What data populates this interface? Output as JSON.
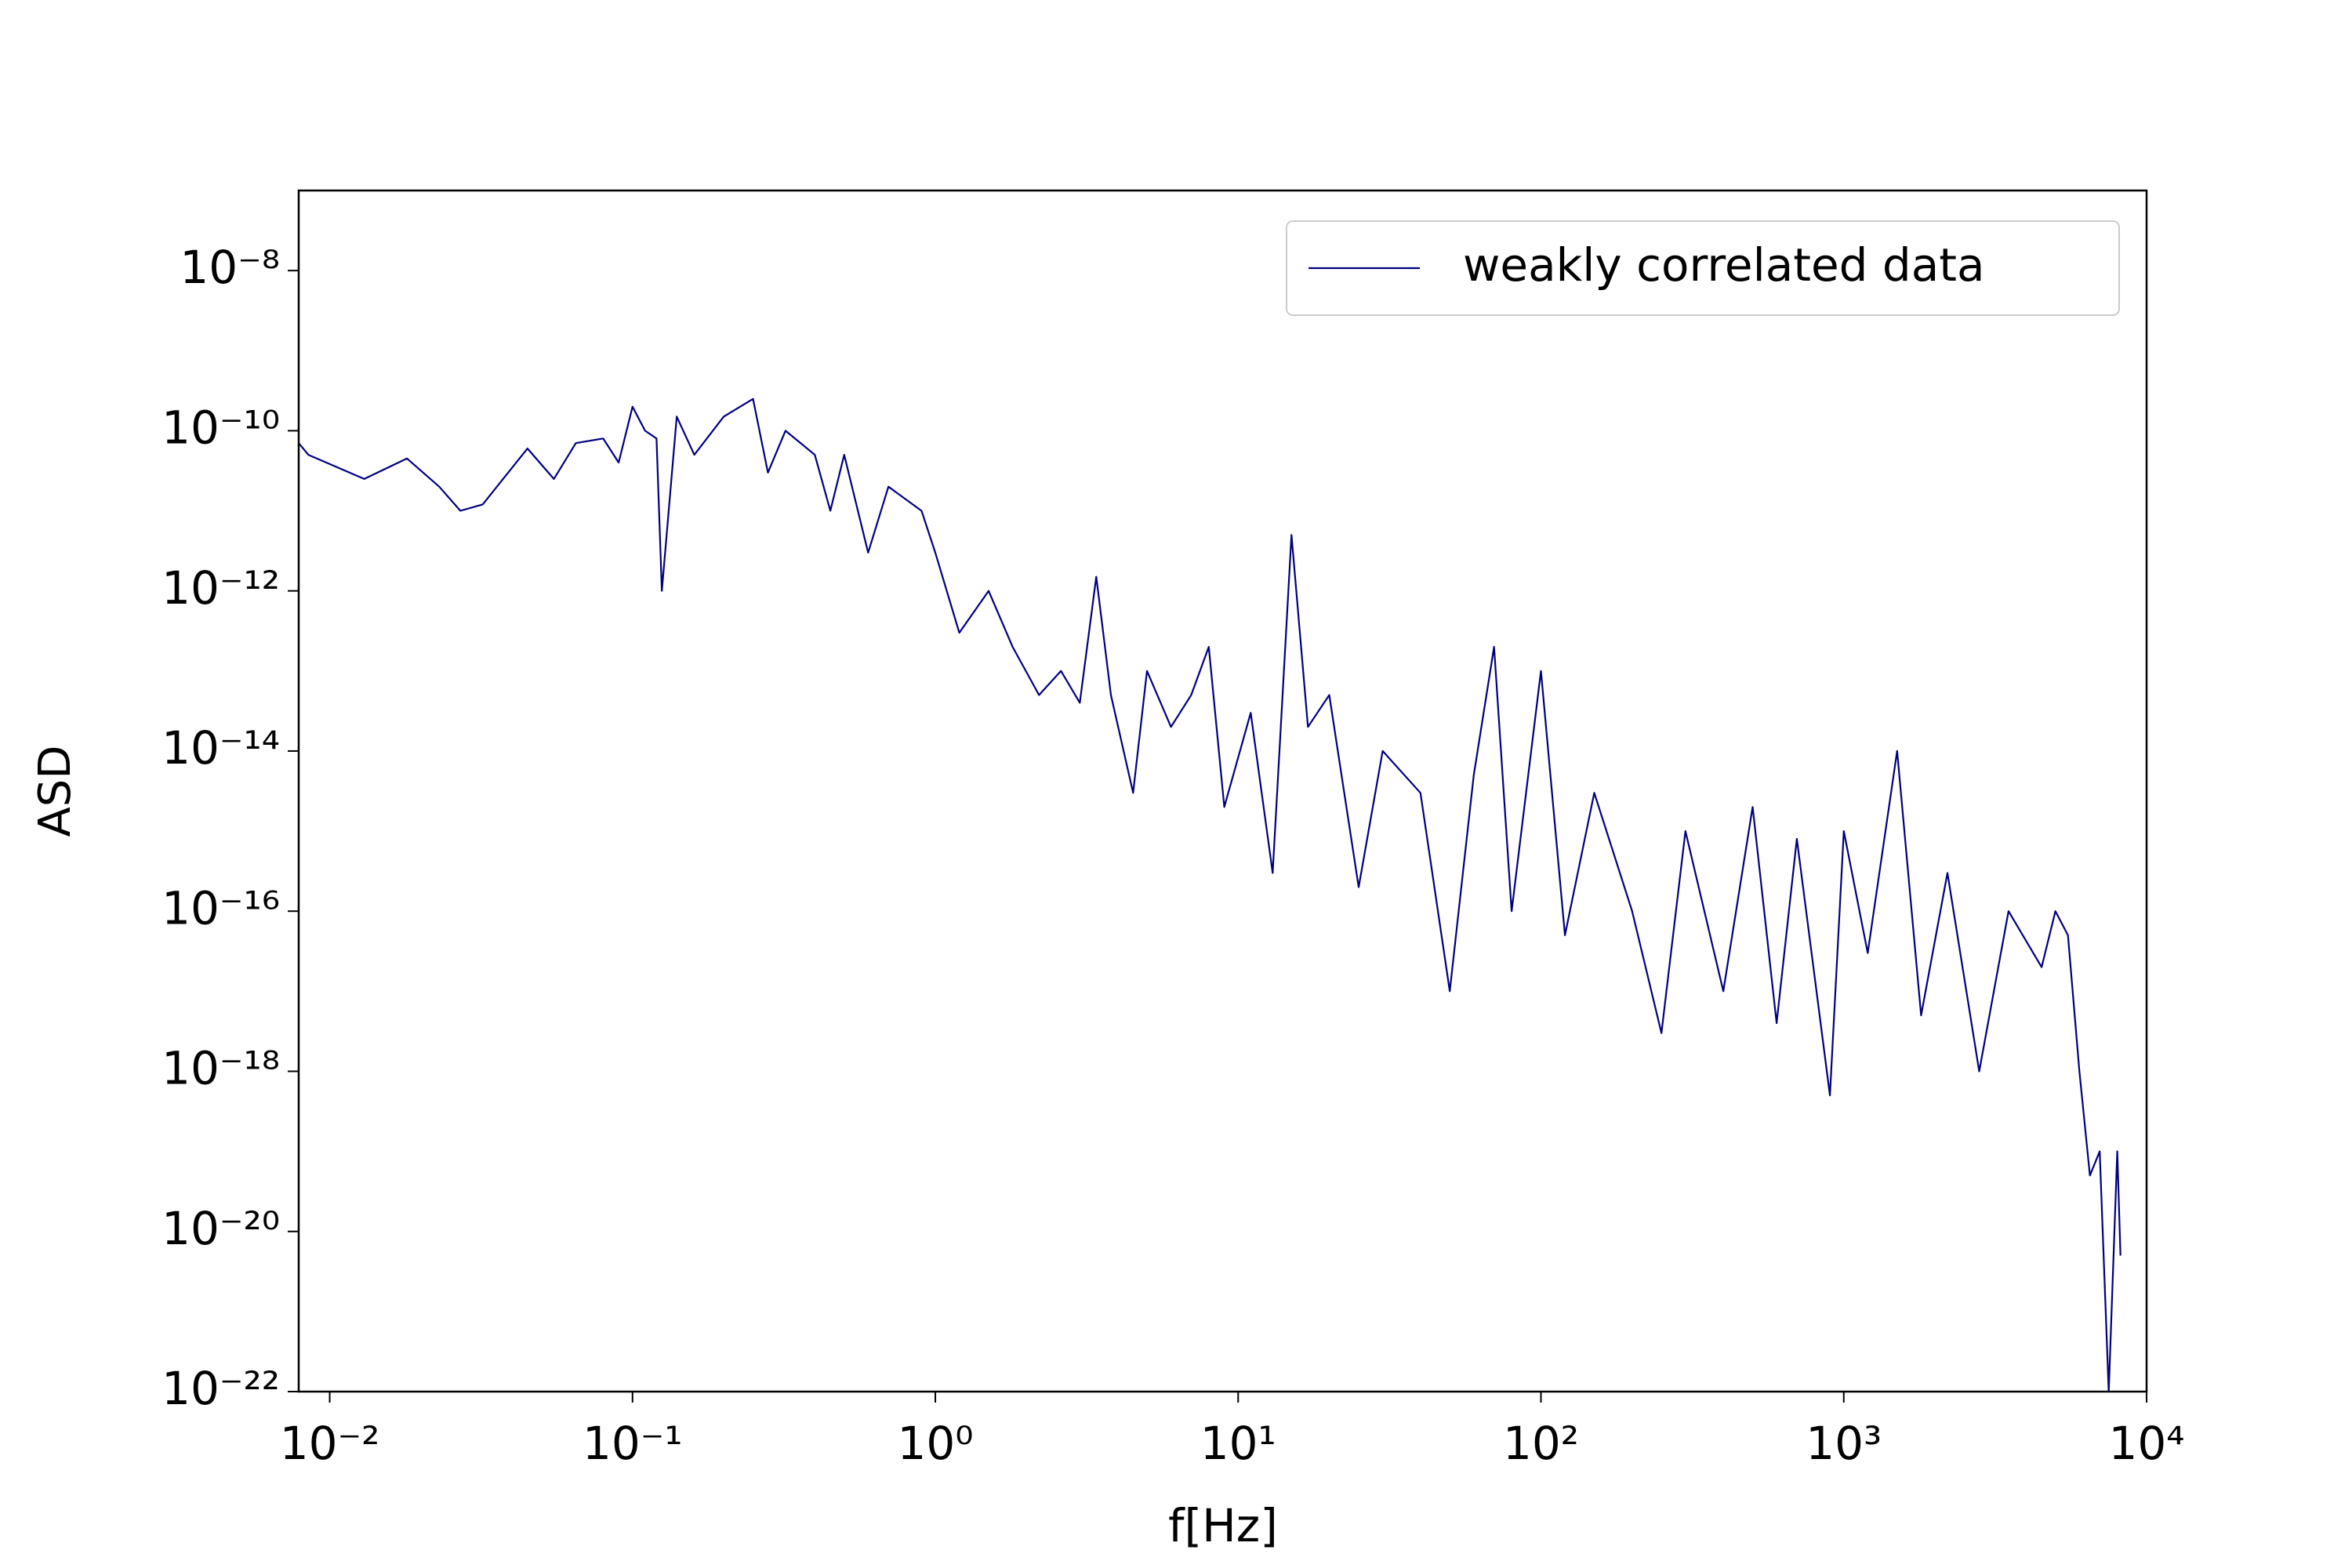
{
  "chart_data": {
    "type": "line",
    "xlabel": "f[Hz]",
    "ylabel": "ASD",
    "xscale": "log",
    "yscale": "log",
    "xlim": [
      0.0079,
      10000
    ],
    "ylim": [
      1e-22,
      1e-07
    ],
    "xticks": [
      {
        "value": 0.01,
        "label": "10⁻²"
      },
      {
        "value": 0.1,
        "label": "10⁻¹"
      },
      {
        "value": 1,
        "label": "10⁰"
      },
      {
        "value": 10,
        "label": "10¹"
      },
      {
        "value": 100,
        "label": "10²"
      },
      {
        "value": 1000,
        "label": "10³"
      },
      {
        "value": 10000,
        "label": "10⁴"
      }
    ],
    "yticks": [
      {
        "value": 1e-22,
        "label": "10⁻²²"
      },
      {
        "value": 1e-20,
        "label": "10⁻²⁰"
      },
      {
        "value": 1e-18,
        "label": "10⁻¹⁸"
      },
      {
        "value": 1e-16,
        "label": "10⁻¹⁶"
      },
      {
        "value": 1e-14,
        "label": "10⁻¹⁴"
      },
      {
        "value": 1e-12,
        "label": "10⁻¹²"
      },
      {
        "value": 1e-10,
        "label": "10⁻¹⁰"
      },
      {
        "value": 1e-08,
        "label": "10⁻⁸"
      }
    ],
    "legend": "upper right",
    "x": [
      0.0079,
      0.0085,
      0.013,
      0.018,
      0.023,
      0.027,
      0.032,
      0.045,
      0.055,
      0.065,
      0.08,
      0.09,
      0.1,
      0.11,
      0.12,
      0.125,
      0.14,
      0.16,
      0.2,
      0.25,
      0.28,
      0.32,
      0.4,
      0.45,
      0.5,
      0.6,
      0.7,
      0.9,
      1.0,
      1.2,
      1.5,
      1.8,
      2.2,
      2.6,
      3.0,
      3.4,
      3.8,
      4.5,
      5,
      6,
      7,
      8,
      9,
      11,
      13,
      15,
      17,
      20,
      25,
      30,
      40,
      50,
      60,
      70,
      80,
      100,
      120,
      150,
      200,
      250,
      300,
      400,
      500,
      600,
      700,
      900,
      1000,
      1200,
      1500,
      1800,
      2200,
      2800,
      3500,
      4500,
      5000,
      5500,
      6000,
      6500,
      7000,
      7500,
      8000,
      8200
    ],
    "series": [
      {
        "name": "weakly correlated data",
        "color": "#000080",
        "values": [
          7e-11,
          5e-11,
          2.5e-11,
          4.5e-11,
          2e-11,
          1e-11,
          1.2e-11,
          6e-11,
          2.5e-11,
          7e-11,
          8e-11,
          4e-11,
          2e-10,
          1e-10,
          8e-11,
          1e-12,
          1.5e-10,
          5e-11,
          1.5e-10,
          2.5e-10,
          3e-11,
          1e-10,
          5e-11,
          1e-11,
          5e-11,
          3e-12,
          2e-11,
          1e-11,
          3e-12,
          3e-13,
          1e-12,
          2e-13,
          5e-14,
          1e-13,
          4e-14,
          1.5e-12,
          5e-14,
          3e-15,
          1e-13,
          2e-14,
          5e-14,
          2e-13,
          2e-15,
          3e-14,
          3e-16,
          5e-12,
          2e-14,
          5e-14,
          2e-16,
          1e-14,
          3e-15,
          1e-17,
          5e-15,
          2e-13,
          1e-16,
          1e-13,
          5e-17,
          3e-15,
          1e-16,
          3e-18,
          1e-15,
          1e-17,
          2e-15,
          4e-18,
          8e-16,
          5e-19,
          1e-15,
          3e-17,
          1e-14,
          5e-18,
          3e-16,
          1e-18,
          1e-16,
          2e-17,
          1e-16,
          5e-17,
          1e-18,
          5e-20,
          1e-19,
          1e-22,
          1e-19,
          5e-21
        ]
      }
    ]
  }
}
